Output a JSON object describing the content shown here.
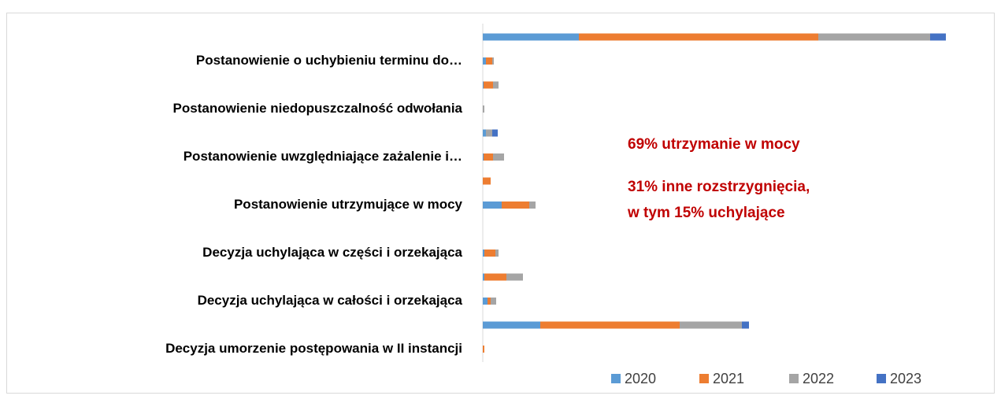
{
  "chart_data": {
    "type": "stacked-bar-horizontal",
    "categories": [
      null,
      "Postanowienie o uchybieniu terminu do…",
      null,
      "Postanowienie niedopuszczalność odwołania",
      null,
      "Postanowienie uwzględniające zażalenie i…",
      null,
      "Postanowienie utrzymujące w mocy",
      null,
      "Decyzja uchylająca w części i orzekająca",
      null,
      "Decyzja uchylająca w całości i orzekająca",
      null,
      "Decyzja umorzenie postępowania w II instancji"
    ],
    "series": [
      {
        "name": "2020",
        "color": "#5b9bd5",
        "values": [
          122,
          4,
          1,
          0,
          4,
          1,
          0,
          24,
          0,
          2,
          2,
          6,
          73,
          0
        ]
      },
      {
        "name": "2021",
        "color": "#ed7d31",
        "values": [
          304,
          8,
          12,
          0,
          0,
          12,
          10,
          35,
          0,
          14,
          28,
          4,
          177,
          2
        ]
      },
      {
        "name": "2022",
        "color": "#a5a5a5",
        "values": [
          142,
          2,
          7,
          2,
          8,
          14,
          0,
          8,
          0,
          4,
          21,
          7,
          79,
          0
        ]
      },
      {
        "name": "2023",
        "color": "#4472c4",
        "values": [
          20,
          0,
          0,
          0,
          7,
          0,
          0,
          0,
          0,
          0,
          0,
          0,
          9,
          0
        ]
      }
    ],
    "xlim": [
      0,
      600
    ],
    "annotations": [
      "69% utrzymanie w mocy",
      "31% inne rozstrzygnięcia,",
      "w tym 15% uchylające"
    ],
    "legend": "bottom"
  }
}
